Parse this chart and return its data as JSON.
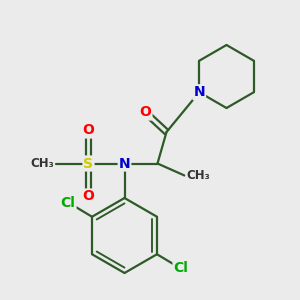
{
  "bg_color": "#ebebeb",
  "bond_color": "#2d5a27",
  "bond_width": 1.6,
  "atom_colors": {
    "N": "#0000cc",
    "O": "#ff0000",
    "S": "#cccc00",
    "Cl": "#00aa00"
  },
  "font_size_atom": 10,
  "font_size_small": 8.5
}
